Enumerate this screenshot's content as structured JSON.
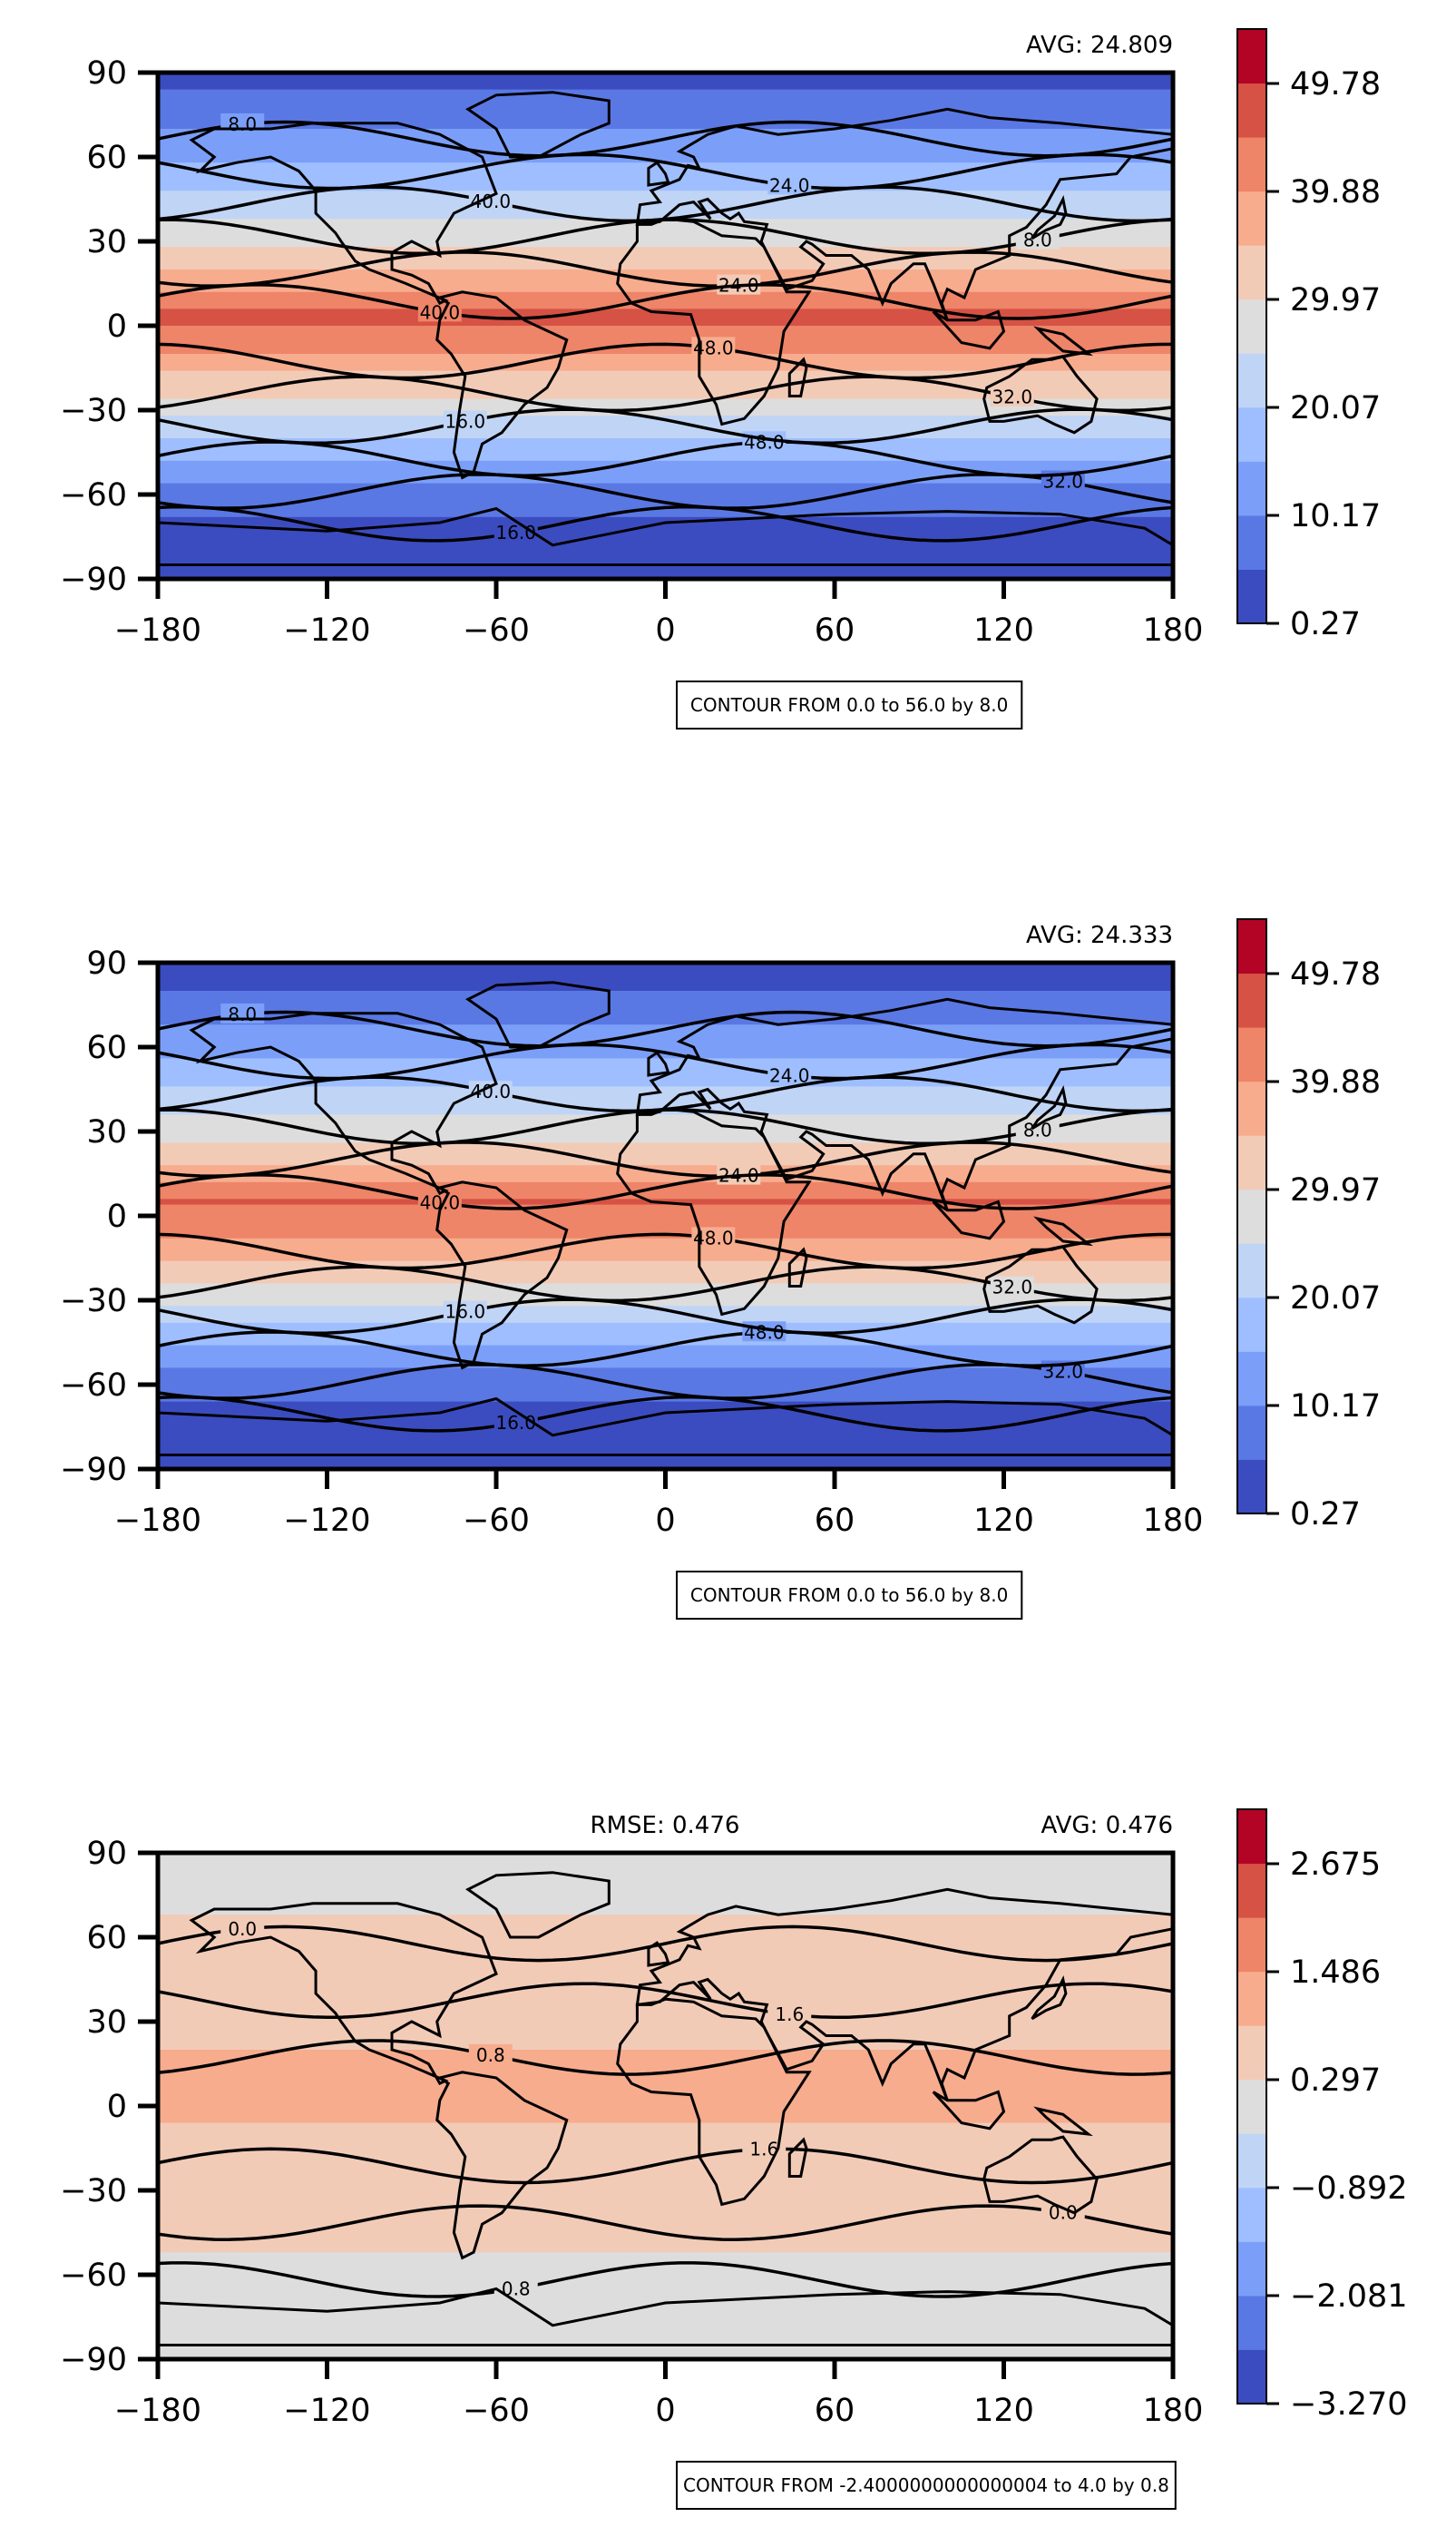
{
  "colors": [
    "#3b4cc0",
    "#5a78e4",
    "#7b9ff9",
    "#9ebeff",
    "#c0d4f5",
    "#dddddd",
    "#f2cbb7",
    "#f7ac8e",
    "#ee8468",
    "#d65244",
    "#b40426"
  ],
  "chart_data": [
    {
      "type": "heatmap",
      "title": "",
      "avg_label": "AVG: 24.809",
      "rmse_label": "",
      "note": "CONTOUR FROM 0.0 to 56.0 by 8.0",
      "xlim": [
        -180,
        180
      ],
      "ylim": [
        -90,
        90
      ],
      "x_ticks": [
        "−180",
        "−120",
        "−60",
        "0",
        "60",
        "120",
        "180"
      ],
      "y_ticks": [
        "90",
        "60",
        "30",
        "0",
        "−30",
        "−60",
        "−90"
      ],
      "colorbar_ticks": [
        "49.78",
        "39.88",
        "29.97",
        "20.07",
        "10.17",
        "0.27"
      ],
      "contour_labels": [
        "8.0",
        "16.0",
        "24.0",
        "32.0",
        "40.0",
        "48.0"
      ],
      "lat_profile": [
        {
          "lat": 90,
          "value": 3
        },
        {
          "lat": 75,
          "value": 8
        },
        {
          "lat": 60,
          "value": 14
        },
        {
          "lat": 45,
          "value": 22
        },
        {
          "lat": 30,
          "value": 29
        },
        {
          "lat": 15,
          "value": 38
        },
        {
          "lat": 5,
          "value": 46
        },
        {
          "lat": -5,
          "value": 44
        },
        {
          "lat": -15,
          "value": 36
        },
        {
          "lat": -30,
          "value": 27
        },
        {
          "lat": -45,
          "value": 17
        },
        {
          "lat": -60,
          "value": 8
        },
        {
          "lat": -75,
          "value": 3
        },
        {
          "lat": -90,
          "value": 1
        }
      ]
    },
    {
      "type": "heatmap",
      "title": "",
      "avg_label": "AVG: 24.333",
      "rmse_label": "",
      "note": "CONTOUR FROM 0.0 to 56.0 by 8.0",
      "xlim": [
        -180,
        180
      ],
      "ylim": [
        -90,
        90
      ],
      "x_ticks": [
        "−180",
        "−120",
        "−60",
        "0",
        "60",
        "120",
        "180"
      ],
      "y_ticks": [
        "90",
        "60",
        "30",
        "0",
        "−30",
        "−60",
        "−90"
      ],
      "colorbar_ticks": [
        "49.78",
        "39.88",
        "29.97",
        "20.07",
        "10.17",
        "0.27"
      ],
      "contour_labels": [
        "8.0",
        "16.0",
        "24.0",
        "32.0",
        "40.0",
        "48.0"
      ],
      "lat_profile": [
        {
          "lat": 90,
          "value": 2
        },
        {
          "lat": 75,
          "value": 7
        },
        {
          "lat": 60,
          "value": 13
        },
        {
          "lat": 45,
          "value": 21
        },
        {
          "lat": 30,
          "value": 28
        },
        {
          "lat": 15,
          "value": 37
        },
        {
          "lat": 5,
          "value": 45
        },
        {
          "lat": -5,
          "value": 43
        },
        {
          "lat": -15,
          "value": 35
        },
        {
          "lat": -30,
          "value": 26
        },
        {
          "lat": -45,
          "value": 16
        },
        {
          "lat": -60,
          "value": 7
        },
        {
          "lat": -75,
          "value": 2
        },
        {
          "lat": -90,
          "value": 1
        }
      ]
    },
    {
      "type": "heatmap",
      "title": "",
      "avg_label": "AVG: 0.476",
      "rmse_label": "RMSE: 0.476",
      "note": "CONTOUR FROM -2.4000000000000004 to 4.0 by 0.8",
      "xlim": [
        -180,
        180
      ],
      "ylim": [
        -90,
        90
      ],
      "x_ticks": [
        "−180",
        "−120",
        "−60",
        "0",
        "60",
        "120",
        "180"
      ],
      "y_ticks": [
        "90",
        "60",
        "30",
        "0",
        "−30",
        "−60",
        "−90"
      ],
      "colorbar_ticks": [
        "2.675",
        "1.486",
        "0.297",
        "−0.892",
        "−2.081",
        "−3.270"
      ],
      "contour_labels": [
        "0.0",
        "0.8",
        "1.6"
      ],
      "lat_profile": [
        {
          "lat": 90,
          "value": 0
        },
        {
          "lat": 75,
          "value": 0.1
        },
        {
          "lat": 60,
          "value": 0.5
        },
        {
          "lat": 45,
          "value": 0.6
        },
        {
          "lat": 30,
          "value": 0.7
        },
        {
          "lat": 15,
          "value": 1.0
        },
        {
          "lat": 5,
          "value": 1.2
        },
        {
          "lat": -5,
          "value": 0.9
        },
        {
          "lat": -15,
          "value": 0.8
        },
        {
          "lat": -30,
          "value": 0.6
        },
        {
          "lat": -45,
          "value": 0.5
        },
        {
          "lat": -60,
          "value": 0.1
        },
        {
          "lat": -75,
          "value": 0
        },
        {
          "lat": -90,
          "value": 0
        }
      ]
    }
  ]
}
